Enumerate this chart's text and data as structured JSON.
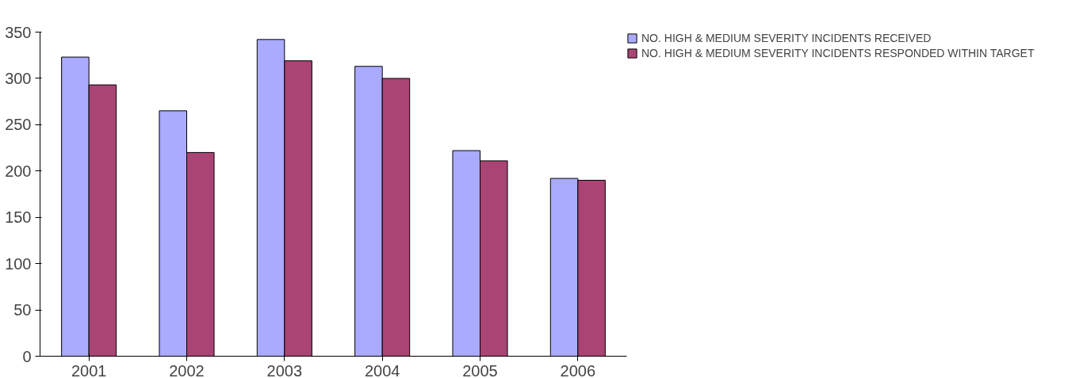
{
  "chart_data": {
    "type": "bar",
    "categories": [
      "2001",
      "2002",
      "2003",
      "2004",
      "2005",
      "2006"
    ],
    "series": [
      {
        "name": "NO. HIGH & MEDIUM SEVERITY INCIDENTS RECEIVED",
        "color": "#aaaaff",
        "values": [
          323,
          265,
          342,
          313,
          222,
          192
        ]
      },
      {
        "name": "NO. HIGH & MEDIUM SEVERITY INCIDENTS RESPONDED WITHIN TARGET",
        "color": "#a94474",
        "values": [
          293,
          220,
          319,
          300,
          211,
          190
        ]
      }
    ],
    "ylim": [
      0,
      350
    ],
    "yticks": [
      0,
      50,
      100,
      150,
      200,
      250,
      300,
      350
    ],
    "grid": false,
    "legend": "top right"
  }
}
